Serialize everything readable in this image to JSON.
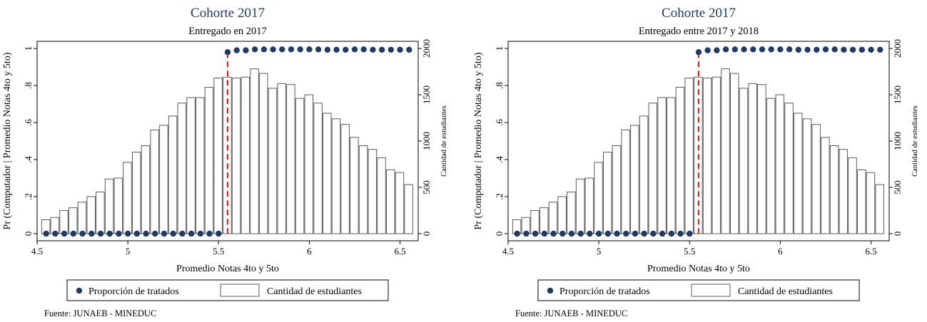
{
  "charts": [
    {
      "title": "Cohorte 2017",
      "subtitle": "Entregado en 2017",
      "source": "Fuente: JUNAEB - MINEDUC"
    },
    {
      "title": "Cohorte 2017",
      "subtitle": "Entregado entre 2017 y 2018",
      "source": "Fuente: JUNAEB - MINEDUC"
    }
  ],
  "legend": {
    "dots": "Proporción de tratados",
    "bars": "Cantidad de estudiantes"
  },
  "colors": {
    "dots": "#1f3b63",
    "bars_stroke": "#5a5a5a",
    "bars_fill": "#ffffff",
    "cutoff": "#e0201b",
    "title": "#1f3b63"
  },
  "chart_data": [
    {
      "type": "bar",
      "title": "Cohorte 2017",
      "subtitle": "Entregado en 2017",
      "xlabel": "Promedio Notas 4to y 5to",
      "ylabel": "Pr (Computador | Promedio Notas 4to y 5to)",
      "y2label": "Cantidad de estudiantes",
      "xlim": [
        4.5,
        6.6
      ],
      "ylim": [
        0,
        1
      ],
      "y2lim": [
        0,
        2000
      ],
      "xticks": [
        "4.5",
        "5",
        "5.5",
        "6",
        "6.5"
      ],
      "yticks": [
        "0",
        ".2",
        ".4",
        ".6",
        ".8",
        "1"
      ],
      "y2ticks": [
        "0",
        "500",
        "1000",
        "1500",
        "2000"
      ],
      "cutoff": 5.55,
      "legend_position": "bottom",
      "bars": {
        "name": "Cantidad de estudiantes",
        "x": [
          4.55,
          4.6,
          4.65,
          4.7,
          4.75,
          4.8,
          4.85,
          4.9,
          4.95,
          5.0,
          5.05,
          5.1,
          5.15,
          5.2,
          5.25,
          5.3,
          5.35,
          5.4,
          5.45,
          5.5,
          5.55,
          5.6,
          5.65,
          5.7,
          5.75,
          5.8,
          5.85,
          5.9,
          5.95,
          6.0,
          6.05,
          6.1,
          6.15,
          6.2,
          6.25,
          6.3,
          6.35,
          6.4,
          6.45,
          6.5,
          6.55
        ],
        "values": [
          150,
          175,
          250,
          280,
          340,
          400,
          450,
          590,
          600,
          770,
          880,
          950,
          1120,
          1170,
          1270,
          1410,
          1470,
          1470,
          1580,
          1680,
          1690,
          1680,
          1690,
          1780,
          1730,
          1570,
          1620,
          1610,
          1460,
          1500,
          1410,
          1300,
          1240,
          1180,
          1040,
          950,
          910,
          820,
          690,
          660,
          530
        ]
      },
      "dots": {
        "name": "Proporción de tratados",
        "x": [
          4.55,
          4.6,
          4.65,
          4.7,
          4.75,
          4.8,
          4.85,
          4.9,
          4.95,
          5.0,
          5.05,
          5.1,
          5.15,
          5.2,
          5.25,
          5.3,
          5.35,
          5.4,
          5.45,
          5.5,
          5.55,
          5.6,
          5.65,
          5.7,
          5.75,
          5.8,
          5.85,
          5.9,
          5.95,
          6.0,
          6.05,
          6.1,
          6.15,
          6.2,
          6.25,
          6.3,
          6.35,
          6.4,
          6.45,
          6.5,
          6.55
        ],
        "values": [
          0,
          0,
          0,
          0,
          0,
          0,
          0,
          0,
          0,
          0,
          0,
          0,
          0,
          0,
          0,
          0,
          0,
          0,
          0,
          0,
          0.98,
          0.99,
          0.99,
          0.995,
          0.995,
          0.995,
          0.995,
          0.995,
          0.995,
          0.995,
          0.995,
          0.993,
          0.993,
          0.993,
          0.995,
          0.995,
          0.993,
          0.993,
          0.993,
          0.993,
          0.993
        ]
      }
    },
    {
      "type": "bar",
      "title": "Cohorte 2017",
      "subtitle": "Entregado entre 2017 y 2018",
      "xlabel": "Promedio Notas 4to y 5to",
      "ylabel": "Pr (Computador | Promedio Notas 4to y 5to)",
      "y2label": "Cantidad de estudiantes",
      "xlim": [
        4.5,
        6.6
      ],
      "ylim": [
        0,
        1
      ],
      "y2lim": [
        0,
        2000
      ],
      "xticks": [
        "4.5",
        "5",
        "5.5",
        "6",
        "6.5"
      ],
      "yticks": [
        "0",
        ".2",
        ".4",
        ".6",
        ".8",
        "1"
      ],
      "y2ticks": [
        "0",
        "500",
        "1000",
        "1500",
        "2000"
      ],
      "cutoff": 5.55,
      "legend_position": "bottom",
      "bars": {
        "name": "Cantidad de estudiantes",
        "x": [
          4.55,
          4.6,
          4.65,
          4.7,
          4.75,
          4.8,
          4.85,
          4.9,
          4.95,
          5.0,
          5.05,
          5.1,
          5.15,
          5.2,
          5.25,
          5.3,
          5.35,
          5.4,
          5.45,
          5.5,
          5.55,
          5.6,
          5.65,
          5.7,
          5.75,
          5.8,
          5.85,
          5.9,
          5.95,
          6.0,
          6.05,
          6.1,
          6.15,
          6.2,
          6.25,
          6.3,
          6.35,
          6.4,
          6.45,
          6.5,
          6.55
        ],
        "values": [
          150,
          175,
          250,
          280,
          340,
          400,
          450,
          590,
          600,
          770,
          880,
          950,
          1120,
          1170,
          1270,
          1410,
          1470,
          1470,
          1580,
          1680,
          1690,
          1680,
          1690,
          1780,
          1730,
          1570,
          1620,
          1610,
          1460,
          1500,
          1410,
          1300,
          1240,
          1180,
          1040,
          950,
          910,
          820,
          690,
          660,
          530
        ]
      },
      "dots": {
        "name": "Proporción de tratados",
        "x": [
          4.55,
          4.6,
          4.65,
          4.7,
          4.75,
          4.8,
          4.85,
          4.9,
          4.95,
          5.0,
          5.05,
          5.1,
          5.15,
          5.2,
          5.25,
          5.3,
          5.35,
          5.4,
          5.45,
          5.5,
          5.55,
          5.6,
          5.65,
          5.7,
          5.75,
          5.8,
          5.85,
          5.9,
          5.95,
          6.0,
          6.05,
          6.1,
          6.15,
          6.2,
          6.25,
          6.3,
          6.35,
          6.4,
          6.45,
          6.5,
          6.55
        ],
        "values": [
          0,
          0,
          0,
          0,
          0,
          0,
          0,
          0,
          0,
          0,
          0,
          0,
          0,
          0,
          0,
          0,
          0,
          0,
          0,
          0,
          0.98,
          0.99,
          0.99,
          0.995,
          0.995,
          0.995,
          0.995,
          0.995,
          0.995,
          0.995,
          0.995,
          0.993,
          0.993,
          0.993,
          0.995,
          0.995,
          0.993,
          0.993,
          0.993,
          0.993,
          0.993
        ]
      }
    }
  ]
}
